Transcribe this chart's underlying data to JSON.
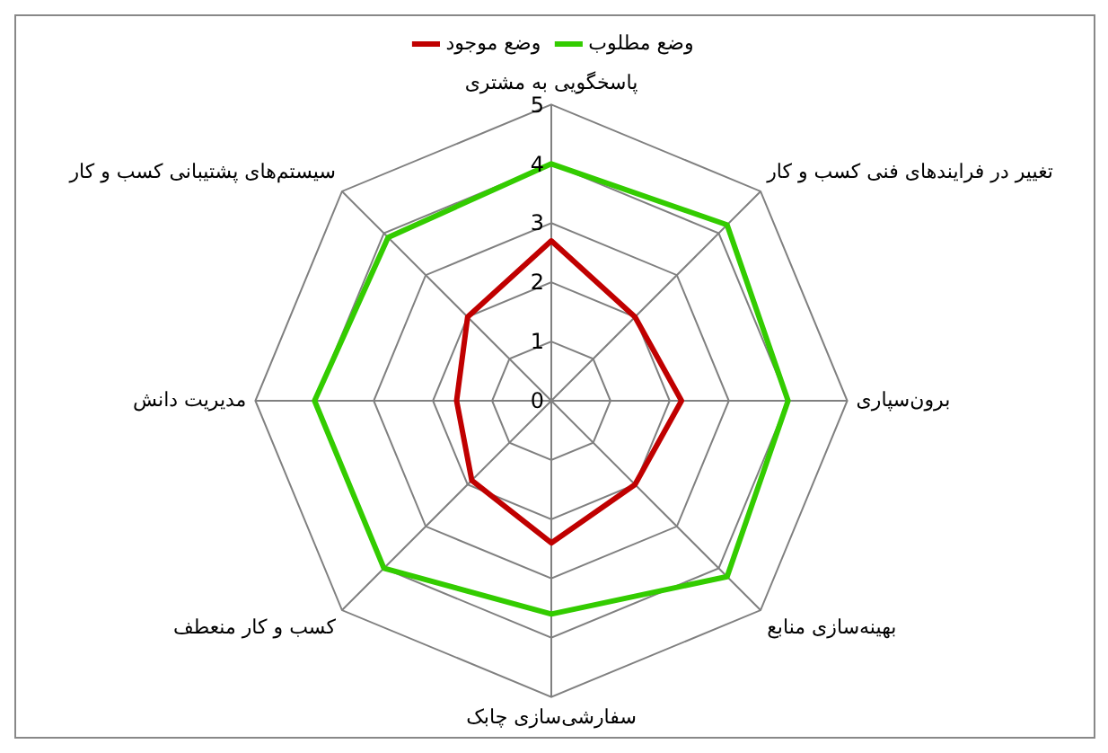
{
  "chart_data": {
    "type": "radar",
    "categories": [
      "پاسخگویی به مشتری",
      "تغییر در فرایندهای فنی کسب و کار",
      "برون‌سپاری",
      "بهینه‌سازی منابع",
      "سفارشی‌سازی چابک",
      "کسب و کار منعطف",
      "مدیریت دانش",
      "سیستم‌های پشتیبانی کسب و کار"
    ],
    "series": [
      {
        "name": "وضع موجود",
        "color": "#c00000",
        "values": [
          2.7,
          2.0,
          2.2,
          2.0,
          2.4,
          1.9,
          1.6,
          2.0
        ]
      },
      {
        "name": "وضع مطلوب",
        "color": "#33cc00",
        "values": [
          4.0,
          4.2,
          4.0,
          4.2,
          3.6,
          4.0,
          4.0,
          3.9
        ]
      }
    ],
    "ylim": [
      0,
      5
    ],
    "yticks": [
      0,
      1,
      2,
      3,
      4,
      5
    ],
    "grid": true,
    "legend": "top",
    "marker": "none"
  }
}
